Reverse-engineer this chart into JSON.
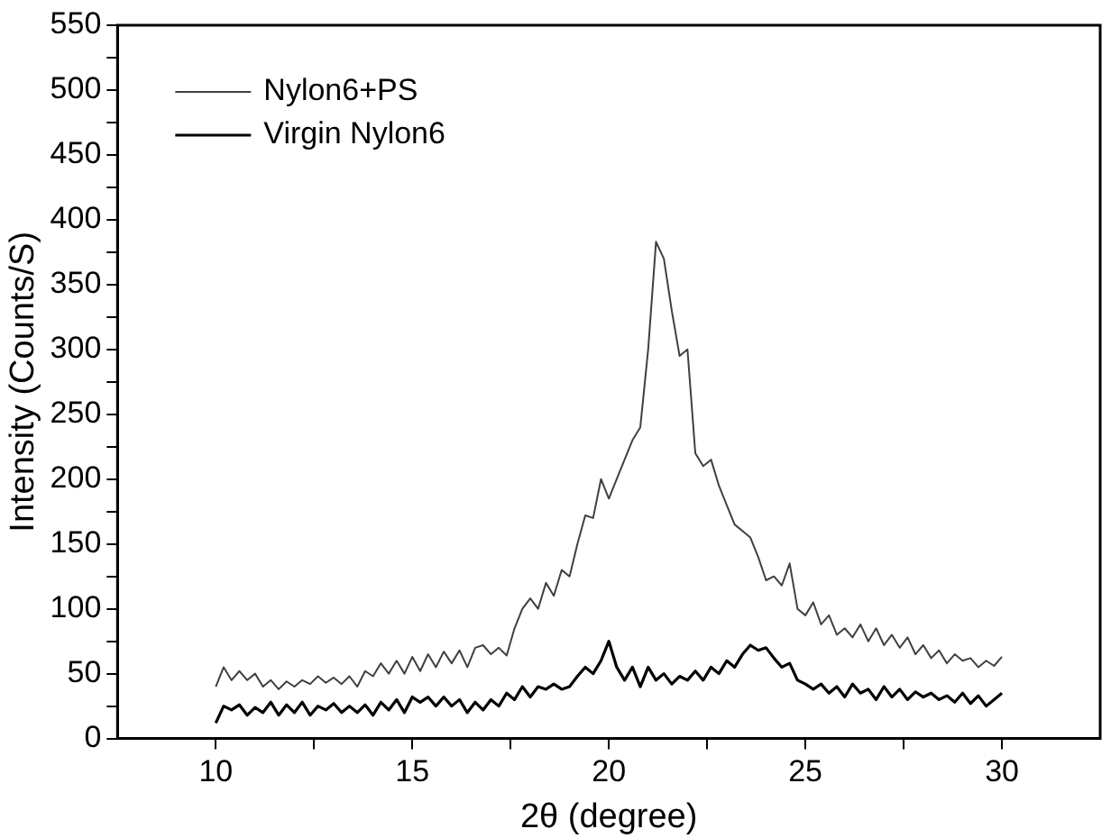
{
  "chart_data": {
    "type": "line",
    "xlabel": "2θ (degree)",
    "ylabel": "Intensity (Counts/S)",
    "x": [
      10,
      10.2,
      10.4,
      10.6,
      10.8,
      11,
      11.2,
      11.4,
      11.6,
      11.8,
      12,
      12.2,
      12.4,
      12.6,
      12.8,
      13,
      13.2,
      13.4,
      13.6,
      13.8,
      14,
      14.2,
      14.4,
      14.6,
      14.8,
      15,
      15.2,
      15.4,
      15.6,
      15.8,
      16,
      16.2,
      16.4,
      16.6,
      16.8,
      17,
      17.2,
      17.4,
      17.6,
      17.8,
      18,
      18.2,
      18.4,
      18.6,
      18.8,
      19,
      19.2,
      19.4,
      19.6,
      19.8,
      20,
      20.2,
      20.4,
      20.6,
      20.8,
      21,
      21.2,
      21.4,
      21.6,
      21.8,
      22,
      22.2,
      22.4,
      22.6,
      22.8,
      23,
      23.2,
      23.4,
      23.6,
      23.8,
      24,
      24.2,
      24.4,
      24.6,
      24.8,
      25,
      25.2,
      25.4,
      25.6,
      25.8,
      26,
      26.2,
      26.4,
      26.6,
      26.8,
      27,
      27.2,
      27.4,
      27.6,
      27.8,
      28,
      28.2,
      28.4,
      28.6,
      28.8,
      29,
      29.2,
      29.4,
      29.6,
      29.8,
      30
    ],
    "series": [
      {
        "name": "Nylon6+PS",
        "color": "#404040",
        "values": [
          40,
          55,
          45,
          52,
          45,
          50,
          40,
          45,
          38,
          44,
          40,
          45,
          42,
          48,
          43,
          47,
          42,
          48,
          40,
          52,
          48,
          58,
          50,
          60,
          50,
          63,
          52,
          65,
          55,
          67,
          58,
          68,
          55,
          70,
          72,
          65,
          70,
          64,
          85,
          100,
          108,
          100,
          120,
          110,
          130,
          125,
          150,
          172,
          170,
          200,
          185,
          200,
          215,
          230,
          240,
          300,
          383,
          370,
          330,
          295,
          300,
          220,
          210,
          215,
          195,
          180,
          165,
          160,
          155,
          140,
          122,
          125,
          118,
          135,
          100,
          95,
          105,
          88,
          95,
          80,
          85,
          78,
          88,
          75,
          85,
          72,
          80,
          70,
          78,
          65,
          72,
          62,
          68,
          58,
          65,
          60,
          62,
          55,
          60,
          56,
          63
        ]
      },
      {
        "name": "Virgin Nylon6",
        "color": "#000000",
        "values": [
          12,
          25,
          22,
          26,
          18,
          24,
          20,
          28,
          18,
          26,
          20,
          28,
          18,
          25,
          22,
          27,
          20,
          25,
          20,
          26,
          18,
          28,
          22,
          30,
          20,
          32,
          28,
          32,
          25,
          32,
          25,
          30,
          20,
          28,
          22,
          30,
          25,
          35,
          30,
          40,
          32,
          40,
          38,
          42,
          38,
          40,
          48,
          55,
          50,
          60,
          75,
          55,
          45,
          55,
          40,
          55,
          45,
          50,
          42,
          48,
          45,
          52,
          45,
          55,
          50,
          60,
          55,
          65,
          72,
          68,
          70,
          62,
          55,
          58,
          45,
          42,
          38,
          42,
          35,
          40,
          32,
          42,
          35,
          38,
          30,
          40,
          32,
          38,
          30,
          36,
          32,
          35,
          30,
          33,
          28,
          35,
          27,
          33,
          25,
          30,
          35
        ]
      }
    ],
    "xlim": [
      7.5,
      32.5
    ],
    "xticks": [
      10,
      {
        "value": 12.5,
        "label": null
      },
      15,
      {
        "value": 17.5,
        "label": null
      },
      20,
      {
        "value": 22.5,
        "label": null
      },
      25,
      {
        "value": 27.5,
        "label": null
      },
      30
    ],
    "ylim": [
      0,
      550
    ],
    "yticks": [
      0,
      {
        "value": 25,
        "label": null
      },
      50,
      {
        "value": 75,
        "label": null
      },
      100,
      {
        "value": 125,
        "label": null
      },
      150,
      {
        "value": 175,
        "label": null
      },
      200,
      {
        "value": 225,
        "label": null
      },
      250,
      {
        "value": 275,
        "label": null
      },
      300,
      {
        "value": 325,
        "label": null
      },
      350,
      {
        "value": 375,
        "label": null
      },
      400,
      {
        "value": 425,
        "label": null
      },
      450,
      {
        "value": 475,
        "label": null
      },
      500,
      {
        "value": 525,
        "label": null
      },
      550
    ],
    "grid": false,
    "legend": "top left",
    "marker": "none",
    "line_style": "solid"
  }
}
